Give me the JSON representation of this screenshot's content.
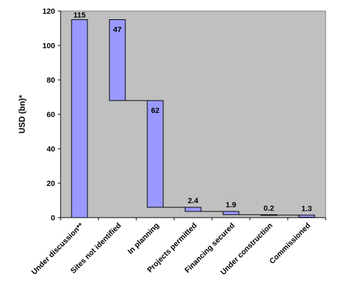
{
  "chart_data": {
    "type": "bar",
    "subtype": "waterfall",
    "title": "",
    "xlabel": "",
    "ylabel": "USD (bn)*",
    "ylim": [
      0,
      120
    ],
    "yticks": [
      "0",
      "20",
      "40",
      "60",
      "80",
      "100",
      "120"
    ],
    "grid": false,
    "legend": "none",
    "categories": [
      "Under discussion**",
      "Sites not identified",
      "In planning",
      "Projects permitted",
      "Financing secured",
      "Under construction",
      "Commissioned"
    ],
    "values": [
      115,
      47,
      62,
      2.4,
      1.9,
      0.2,
      1.3
    ],
    "labels": [
      "115",
      "47",
      "62",
      "2.4",
      "1.9",
      "0.2",
      "1.3"
    ],
    "colors": {
      "plot_background": "#c0c0c0",
      "bar_fill": "#9999ff",
      "bar_stroke": "#000000"
    }
  }
}
